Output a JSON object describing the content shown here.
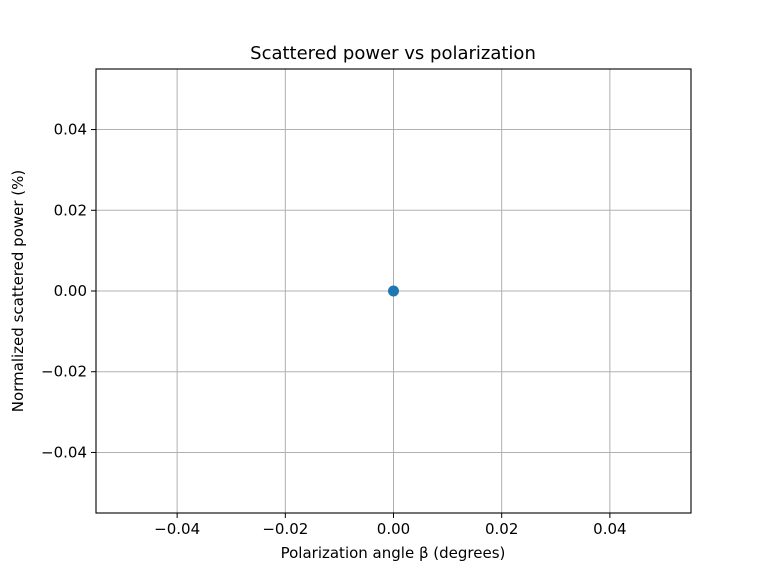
{
  "chart_data": {
    "type": "scatter",
    "title": "Scattered power vs polarization",
    "xlabel": "Polarization angle β (degrees)",
    "ylabel": "Normalized scattered power (%)",
    "xlim": [
      -0.055,
      0.055
    ],
    "ylim": [
      -0.055,
      0.055
    ],
    "x_ticks": [
      -0.04,
      -0.02,
      0.0,
      0.02,
      0.04
    ],
    "x_tick_labels": [
      "−0.04",
      "−0.02",
      "0.00",
      "0.02",
      "0.04"
    ],
    "y_ticks": [
      -0.04,
      -0.02,
      0.0,
      0.02,
      0.04
    ],
    "y_tick_labels": [
      "−0.04",
      "−0.02",
      "0.00",
      "0.02",
      "0.04"
    ],
    "grid": true,
    "series": [
      {
        "x": [
          0.0
        ],
        "y": [
          0.0
        ],
        "color": "#1f77b4",
        "marker": "circle"
      }
    ]
  }
}
